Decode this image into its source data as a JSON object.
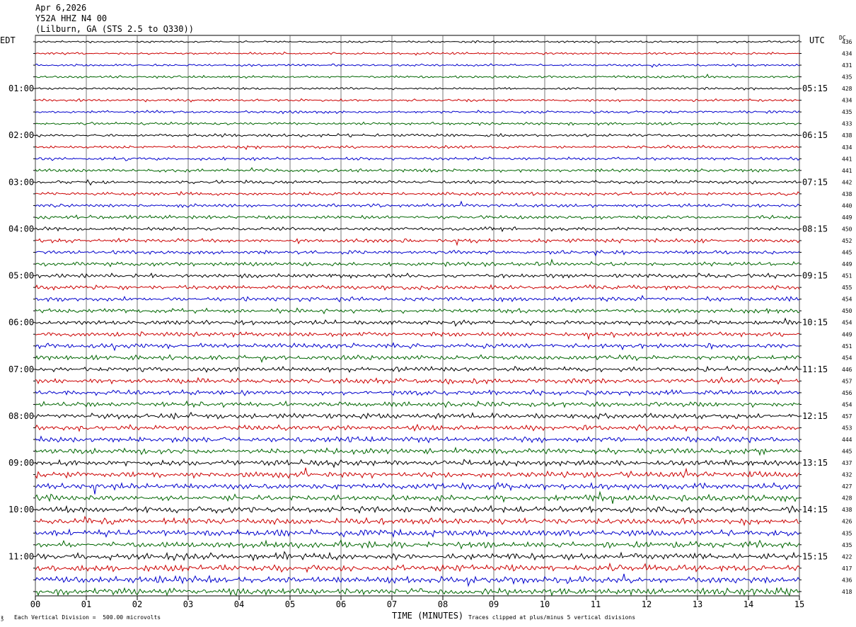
{
  "header": {
    "date": "Apr 6,2026",
    "station": "Y52A HHZ N4 00",
    "location": "(Lilburn, GA (STS 2.5 to Q330))"
  },
  "left_axis_label": "EDT",
  "right_axis_label": "UTC",
  "dc_label": "DC",
  "footer": {
    "scale_note": "Each Vertical Division =  500.00 microvolts",
    "xlabel": "TIME (MINUTES)",
    "clip_note": "Traces clipped at plus/minus 5 vertical divisions"
  },
  "colors": {
    "trace_cycle": [
      "#000000",
      "#cc0000",
      "#0000cc",
      "#006600"
    ],
    "grid": "#000000",
    "background": "#ffffff"
  },
  "chart_data": {
    "type": "line",
    "x_ticks": [
      "00",
      "01",
      "02",
      "03",
      "04",
      "05",
      "06",
      "07",
      "08",
      "09",
      "10",
      "11",
      "12",
      "13",
      "14",
      "15"
    ],
    "xlim": [
      0,
      15
    ],
    "edt_hour_labels": [
      "01:00",
      "02:00",
      "03:00",
      "04:00",
      "05:00",
      "06:00",
      "07:00",
      "08:00",
      "09:00",
      "10:00",
      "11:00"
    ],
    "utc_hour_labels": [
      "05:15",
      "06:15",
      "07:15",
      "08:15",
      "09:15",
      "10:15",
      "11:15",
      "12:15",
      "13:15",
      "14:15",
      "15:15"
    ],
    "dc_offsets": [
      436,
      434,
      431,
      435,
      428,
      434,
      435,
      433,
      438,
      434,
      441,
      441,
      442,
      438,
      440,
      449,
      450,
      452,
      445,
      449,
      451,
      455,
      454,
      450,
      454,
      449,
      451,
      454,
      446,
      457,
      456,
      454,
      457,
      453,
      444,
      445,
      437,
      432,
      427,
      428,
      438,
      426,
      435,
      435,
      422,
      417,
      436,
      418
    ],
    "trace_count": 48,
    "minutes_per_trace": 15
  }
}
